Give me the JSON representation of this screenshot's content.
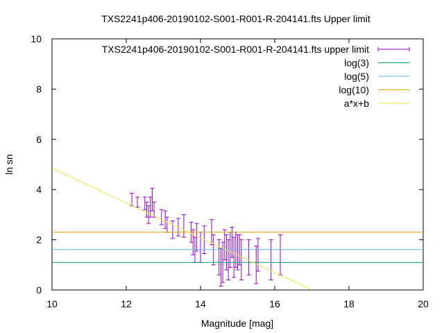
{
  "chart_data": {
    "type": "scatter",
    "title": "TXS2241p406-20190102-S001-R001-R-204141.fts Upper limit",
    "xlabel": "Magnitude [mag]",
    "ylabel": "ln sn",
    "xlim": [
      10,
      20
    ],
    "ylim": [
      0,
      10
    ],
    "xticks": [
      10,
      12,
      14,
      16,
      18,
      20
    ],
    "yticks": [
      0,
      2,
      4,
      6,
      8,
      10
    ],
    "legend_position": "top-right",
    "grid": false,
    "series": [
      {
        "name": "TXS2241p406-20190102-S001-R001-R-204141.fts upper limit",
        "kind": "errorbar",
        "color": "#9400d3",
        "points": [
          {
            "x": 12.15,
            "y": 3.6,
            "err": 0.25
          },
          {
            "x": 12.3,
            "y": 3.5,
            "err": 0.2
          },
          {
            "x": 12.5,
            "y": 3.45,
            "err": 0.25
          },
          {
            "x": 12.55,
            "y": 3.2,
            "err": 0.3
          },
          {
            "x": 12.6,
            "y": 3.0,
            "err": 0.35
          },
          {
            "x": 12.65,
            "y": 3.3,
            "err": 0.4
          },
          {
            "x": 12.7,
            "y": 3.6,
            "err": 0.45
          },
          {
            "x": 12.75,
            "y": 3.2,
            "err": 0.3
          },
          {
            "x": 12.95,
            "y": 2.9,
            "err": 0.3
          },
          {
            "x": 13.05,
            "y": 2.8,
            "err": 0.35
          },
          {
            "x": 13.1,
            "y": 2.6,
            "err": 0.3
          },
          {
            "x": 13.25,
            "y": 2.4,
            "err": 0.35
          },
          {
            "x": 13.4,
            "y": 2.5,
            "err": 0.35
          },
          {
            "x": 13.55,
            "y": 2.55,
            "err": 0.45
          },
          {
            "x": 13.75,
            "y": 2.3,
            "err": 0.4
          },
          {
            "x": 13.8,
            "y": 1.9,
            "err": 0.5
          },
          {
            "x": 13.85,
            "y": 1.6,
            "err": 0.5
          },
          {
            "x": 13.9,
            "y": 2.1,
            "err": 0.55
          },
          {
            "x": 14.0,
            "y": 1.7,
            "err": 0.6
          },
          {
            "x": 14.1,
            "y": 2.0,
            "err": 0.55
          },
          {
            "x": 14.3,
            "y": 2.3,
            "err": 0.5
          },
          {
            "x": 14.35,
            "y": 1.6,
            "err": 0.6
          },
          {
            "x": 14.5,
            "y": 1.3,
            "err": 0.7
          },
          {
            "x": 14.55,
            "y": 0.9,
            "err": 0.75
          },
          {
            "x": 14.6,
            "y": 1.1,
            "err": 0.8
          },
          {
            "x": 14.65,
            "y": 1.8,
            "err": 0.6
          },
          {
            "x": 14.7,
            "y": 1.5,
            "err": 0.7
          },
          {
            "x": 14.75,
            "y": 1.2,
            "err": 0.8
          },
          {
            "x": 14.8,
            "y": 1.6,
            "err": 0.7
          },
          {
            "x": 14.85,
            "y": 1.9,
            "err": 0.6
          },
          {
            "x": 14.9,
            "y": 1.3,
            "err": 0.8
          },
          {
            "x": 14.95,
            "y": 1.6,
            "err": 0.7
          },
          {
            "x": 15.0,
            "y": 1.5,
            "err": 0.7
          },
          {
            "x": 15.05,
            "y": 1.6,
            "err": 0.6
          },
          {
            "x": 15.1,
            "y": 1.2,
            "err": 0.8
          },
          {
            "x": 15.3,
            "y": 1.3,
            "err": 0.7
          },
          {
            "x": 15.5,
            "y": 1.0,
            "err": 0.75
          },
          {
            "x": 15.55,
            "y": 1.4,
            "err": 0.65
          },
          {
            "x": 15.9,
            "y": 1.2,
            "err": 0.8
          },
          {
            "x": 16.15,
            "y": 1.4,
            "err": 0.8
          }
        ]
      },
      {
        "name": "log(3)",
        "kind": "hline",
        "y": 1.0986,
        "color": "#009e73"
      },
      {
        "name": "log(5)",
        "kind": "hline",
        "y": 1.6094,
        "color": "#56b4e9"
      },
      {
        "name": "log(10)",
        "kind": "hline",
        "y": 2.3026,
        "color": "#e69f00"
      },
      {
        "name": "a*x+b",
        "kind": "fit",
        "x": [
          10,
          17
        ],
        "y": [
          4.85,
          0
        ],
        "color": "#f0e442"
      }
    ]
  }
}
